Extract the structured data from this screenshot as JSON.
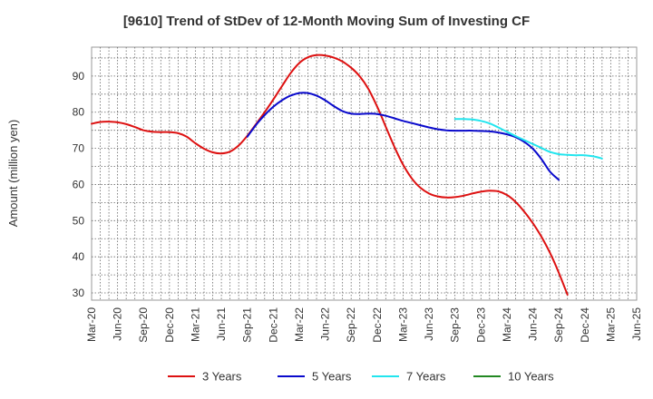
{
  "chart_data": {
    "type": "line",
    "title": "[9610]  Trend of StDev of 12-Month Moving Sum of Investing CF",
    "xlabel": "",
    "ylabel": "Amount (million yen)",
    "ylim": [
      28,
      98
    ],
    "yticks": [
      30,
      40,
      50,
      60,
      70,
      80,
      90
    ],
    "xlim": [
      "Mar-20",
      "Jun-25"
    ],
    "xticks": [
      "Mar-20",
      "Jun-20",
      "Sep-20",
      "Dec-20",
      "Mar-21",
      "Jun-21",
      "Sep-21",
      "Dec-21",
      "Mar-22",
      "Jun-22",
      "Sep-22",
      "Dec-22",
      "Mar-23",
      "Jun-23",
      "Sep-23",
      "Dec-23",
      "Mar-24",
      "Jun-24",
      "Sep-24",
      "Dec-24",
      "Mar-25",
      "Jun-25"
    ],
    "grid": true,
    "legend_position": "bottom",
    "series": [
      {
        "name": "3 Years",
        "color": "#dd1111",
        "points": [
          [
            "Mar-20",
            76.8
          ],
          [
            "Apr-20",
            77.3
          ],
          [
            "May-20",
            77.4
          ],
          [
            "Jun-20",
            77.2
          ],
          [
            "Jul-20",
            76.7
          ],
          [
            "Aug-20",
            75.9
          ],
          [
            "Sep-20",
            75.0
          ],
          [
            "Oct-20",
            74.6
          ],
          [
            "Nov-20",
            74.5
          ],
          [
            "Dec-20",
            74.5
          ],
          [
            "Jan-21",
            74.2
          ],
          [
            "Feb-21",
            73.2
          ],
          [
            "Mar-21",
            71.4
          ],
          [
            "Apr-21",
            69.9
          ],
          [
            "May-21",
            68.9
          ],
          [
            "Jun-21",
            68.6
          ],
          [
            "Jul-21",
            69.1
          ],
          [
            "Aug-21",
            70.8
          ],
          [
            "Sep-21",
            73.5
          ],
          [
            "Oct-21",
            76.7
          ],
          [
            "Nov-21",
            80.0
          ],
          [
            "Dec-21",
            83.5
          ],
          [
            "Jan-22",
            87.2
          ],
          [
            "Feb-22",
            90.8
          ],
          [
            "Mar-22",
            93.6
          ],
          [
            "Apr-22",
            95.2
          ],
          [
            "May-22",
            95.8
          ],
          [
            "Jun-22",
            95.7
          ],
          [
            "Jul-22",
            95.1
          ],
          [
            "Aug-22",
            94.0
          ],
          [
            "Sep-22",
            92.3
          ],
          [
            "Oct-22",
            89.9
          ],
          [
            "Nov-22",
            86.4
          ],
          [
            "Dec-22",
            81.6
          ],
          [
            "Jan-23",
            76.0
          ],
          [
            "Feb-23",
            70.4
          ],
          [
            "Mar-23",
            65.5
          ],
          [
            "Apr-23",
            61.7
          ],
          [
            "May-23",
            59.1
          ],
          [
            "Jun-23",
            57.5
          ],
          [
            "Jul-23",
            56.7
          ],
          [
            "Aug-23",
            56.4
          ],
          [
            "Sep-23",
            56.5
          ],
          [
            "Oct-23",
            56.9
          ],
          [
            "Nov-23",
            57.5
          ],
          [
            "Dec-23",
            58.0
          ],
          [
            "Jan-24",
            58.3
          ],
          [
            "Feb-24",
            58.1
          ],
          [
            "Mar-24",
            57.1
          ],
          [
            "Apr-24",
            55.2
          ],
          [
            "May-24",
            52.5
          ],
          [
            "Jun-24",
            49.3
          ],
          [
            "Jul-24",
            45.5
          ],
          [
            "Aug-24",
            41.0
          ],
          [
            "Sep-24",
            35.6
          ],
          [
            "Oct-24",
            29.5
          ]
        ]
      },
      {
        "name": "5 Years",
        "color": "#0a0acc",
        "points": [
          [
            "Sep-21",
            73.2
          ],
          [
            "Oct-21",
            76.5
          ],
          [
            "Nov-21",
            79.2
          ],
          [
            "Dec-21",
            81.5
          ],
          [
            "Jan-22",
            83.3
          ],
          [
            "Feb-22",
            84.6
          ],
          [
            "Mar-22",
            85.3
          ],
          [
            "Apr-22",
            85.3
          ],
          [
            "May-22",
            84.6
          ],
          [
            "Jun-22",
            83.3
          ],
          [
            "Jul-22",
            81.7
          ],
          [
            "Aug-22",
            80.3
          ],
          [
            "Sep-22",
            79.6
          ],
          [
            "Oct-22",
            79.5
          ],
          [
            "Nov-22",
            79.6
          ],
          [
            "Dec-22",
            79.5
          ],
          [
            "Jan-23",
            79.0
          ],
          [
            "Feb-23",
            78.3
          ],
          [
            "Mar-23",
            77.6
          ],
          [
            "Apr-23",
            77.0
          ],
          [
            "May-23",
            76.4
          ],
          [
            "Jun-23",
            75.8
          ],
          [
            "Jul-23",
            75.3
          ],
          [
            "Aug-23",
            75.0
          ],
          [
            "Sep-23",
            74.9
          ],
          [
            "Oct-23",
            74.9
          ],
          [
            "Nov-23",
            74.9
          ],
          [
            "Dec-23",
            74.8
          ],
          [
            "Jan-24",
            74.7
          ],
          [
            "Feb-24",
            74.4
          ],
          [
            "Mar-24",
            73.9
          ],
          [
            "Apr-24",
            73.1
          ],
          [
            "May-24",
            71.8
          ],
          [
            "Jun-24",
            69.9
          ],
          [
            "Jul-24",
            67.0
          ],
          [
            "Aug-24",
            63.5
          ],
          [
            "Sep-24",
            61.3
          ]
        ]
      },
      {
        "name": "7 Years",
        "color": "#22e5ee",
        "points": [
          [
            "Sep-23",
            78.1
          ],
          [
            "Oct-23",
            78.1
          ],
          [
            "Nov-23",
            78.0
          ],
          [
            "Dec-23",
            77.6
          ],
          [
            "Jan-24",
            76.9
          ],
          [
            "Feb-24",
            75.8
          ],
          [
            "Mar-24",
            74.6
          ],
          [
            "Apr-24",
            73.4
          ],
          [
            "May-24",
            72.3
          ],
          [
            "Jun-24",
            71.2
          ],
          [
            "Jul-24",
            70.1
          ],
          [
            "Aug-24",
            69.0
          ],
          [
            "Sep-24",
            68.4
          ],
          [
            "Oct-24",
            68.2
          ],
          [
            "Nov-24",
            68.1
          ],
          [
            "Dec-24",
            68.1
          ],
          [
            "Jan-25",
            67.8
          ],
          [
            "Feb-25",
            67.2
          ]
        ]
      },
      {
        "name": "10 Years",
        "color": "#228822",
        "points": []
      }
    ]
  }
}
